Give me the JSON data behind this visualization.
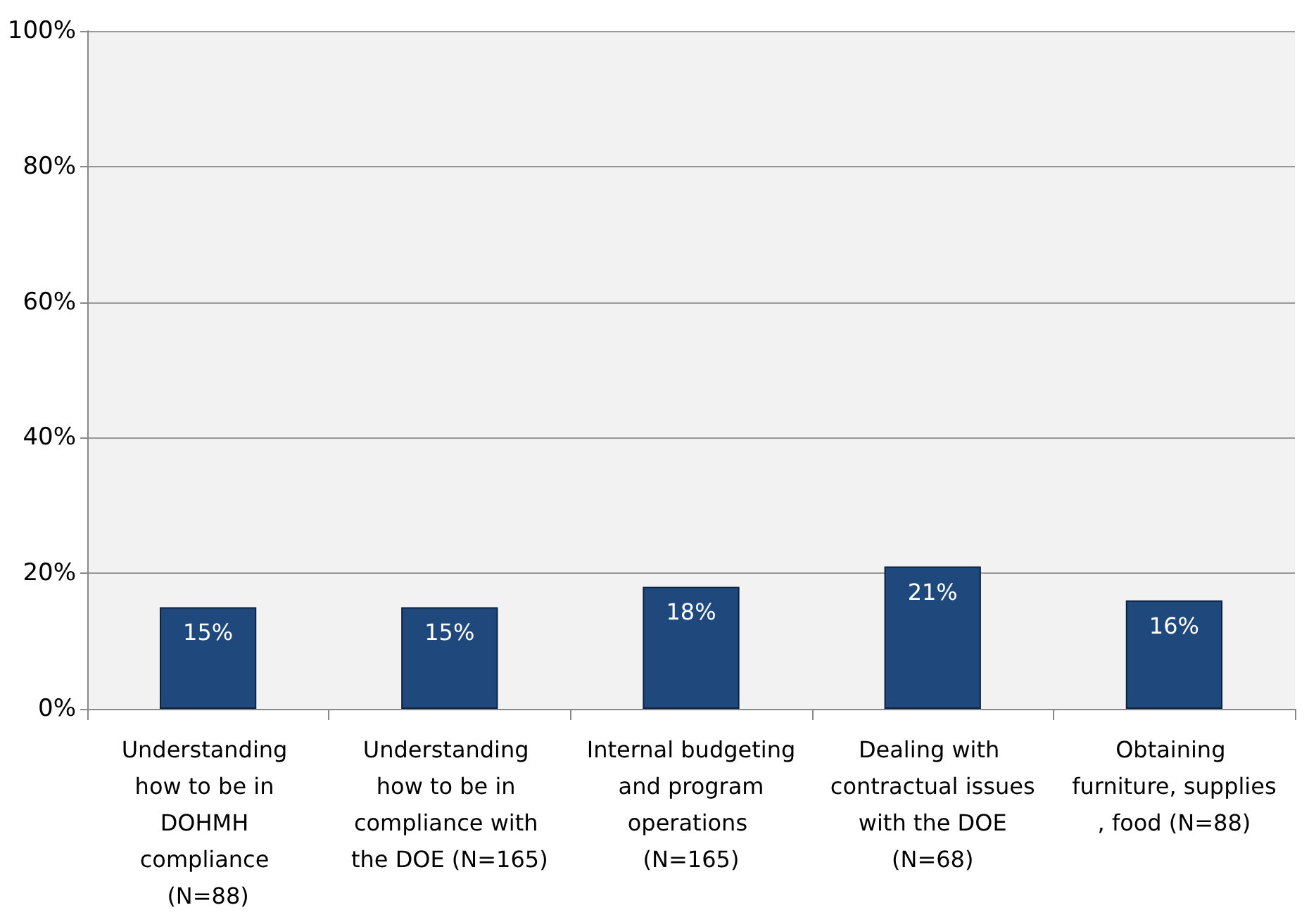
{
  "chart_data": {
    "type": "bar",
    "categories": [
      "Understanding how to be in DOHMH compliance (N=88)",
      "Understanding how to be in compliance with the DOE (N=165)",
      "Internal budgeting and program operations (N=165)",
      "Dealing with contractual issues with the DOE (N=68)",
      "Obtaining furniture, supplies, food (N=88)"
    ],
    "values": [
      15,
      15,
      18,
      21,
      16
    ],
    "value_labels": [
      "15%",
      "15%",
      "18%",
      "21%",
      "16%"
    ],
    "color": "#1f497d",
    "ylim": [
      0,
      100
    ],
    "yticks": [
      {
        "value": 0,
        "label": "0%"
      },
      {
        "value": 20,
        "label": "20%"
      },
      {
        "value": 40,
        "label": "40%"
      },
      {
        "value": 60,
        "label": "60%"
      },
      {
        "value": 80,
        "label": "80%"
      },
      {
        "value": 100,
        "label": "100%"
      }
    ],
    "grid": "y"
  }
}
